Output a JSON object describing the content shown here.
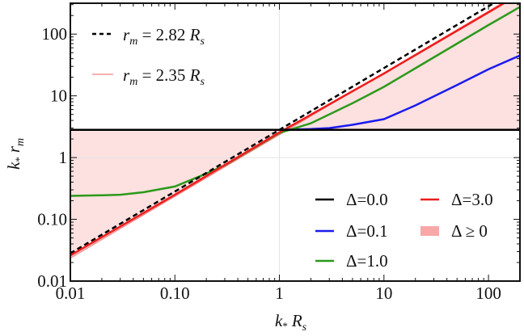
{
  "chart_data": {
    "type": "line",
    "x_scale": "log",
    "y_scale": "log",
    "xlim": [
      0.01,
      200
    ],
    "ylim": [
      0.01,
      316
    ],
    "grid": "faint lines at x=1 and y=1",
    "xlabel": {
      "var": "k",
      "sub": "*",
      "unit": "R",
      "unit_sub": "s"
    },
    "ylabel": {
      "var": "k",
      "sub": "*",
      "unit": "r",
      "unit_sub": "m"
    },
    "x_ticks": [
      {
        "value": 0.01,
        "label": "0.01"
      },
      {
        "value": 0.1,
        "label": "0.10"
      },
      {
        "value": 1,
        "label": "1"
      },
      {
        "value": 10,
        "label": "10"
      },
      {
        "value": 100,
        "label": "100"
      }
    ],
    "y_ticks": [
      {
        "value": 0.01,
        "label": "0.01"
      },
      {
        "value": 0.1,
        "label": "0.10"
      },
      {
        "value": 1,
        "label": "1"
      },
      {
        "value": 10,
        "label": "10"
      },
      {
        "value": 100,
        "label": "100"
      }
    ],
    "fill": {
      "name": "Δ ≥ 0",
      "color": "#fde0e0",
      "legend_color": "#f9a8a8",
      "between": [
        "Δ=0.0",
        "r_m = 2.35 R_s"
      ]
    },
    "series": [
      {
        "name": "Δ=0.0",
        "color": "#000000",
        "points": [
          [
            0.01,
            2.82
          ],
          [
            200,
            2.82
          ]
        ]
      },
      {
        "name": "Δ=0.1",
        "color": "#1a1aee",
        "points": [
          [
            0.01,
            2.82
          ],
          [
            1,
            2.82
          ],
          [
            2,
            2.9
          ],
          [
            3,
            3.0
          ],
          [
            5,
            3.4
          ],
          [
            10,
            4.2
          ],
          [
            20,
            7
          ],
          [
            50,
            15
          ],
          [
            100,
            27
          ],
          [
            200,
            45
          ]
        ]
      },
      {
        "name": "Δ=1.0",
        "color": "#2a9a1a",
        "points": [
          [
            0.01,
            0.24
          ],
          [
            0.02,
            0.245
          ],
          [
            0.03,
            0.25
          ],
          [
            0.05,
            0.275
          ],
          [
            0.1,
            0.34
          ],
          [
            0.2,
            0.55
          ],
          [
            0.3,
            0.75
          ],
          [
            0.5,
            1.25
          ],
          [
            1,
            2.5
          ],
          [
            2,
            3.6
          ],
          [
            5,
            7.6
          ],
          [
            10,
            14
          ],
          [
            20,
            28
          ],
          [
            50,
            70
          ],
          [
            100,
            140
          ],
          [
            200,
            275
          ]
        ]
      },
      {
        "name": "Δ=3.0",
        "color": "#ee1c1c",
        "points": [
          [
            0.01,
            0.026
          ],
          [
            0.1,
            0.25
          ],
          [
            1,
            2.55
          ],
          [
            10,
            23
          ],
          [
            100,
            225
          ],
          [
            200,
            450
          ]
        ]
      },
      {
        "name": "r_m = 2.82 R_s",
        "color": "#000000",
        "dashed": true,
        "points": [
          [
            0.01,
            0.0282
          ],
          [
            200,
            564
          ]
        ]
      },
      {
        "name": "r_m = 2.35 R_s",
        "color": "#f08080",
        "thin": true,
        "points": [
          [
            0.01,
            0.0235
          ],
          [
            200,
            470
          ]
        ]
      }
    ],
    "legend_top_left": [
      {
        "var": "r",
        "sub": "m",
        "eq": " = 2.82 ",
        "unit": "R",
        "unit_sub": "s",
        "style": "dashed",
        "color": "#000000"
      },
      {
        "var": "r",
        "sub": "m",
        "eq": " = 2.35 ",
        "unit": "R",
        "unit_sub": "s",
        "style": "thin",
        "color": "#f08080"
      }
    ],
    "legend_bottom_right": [
      {
        "label": "Δ=0.0",
        "color": "#000000"
      },
      {
        "label": "Δ=3.0",
        "color": "#ee1c1c"
      },
      {
        "label": "Δ=0.1",
        "color": "#1a1aee"
      },
      {
        "label": "Δ ≥ 0",
        "color": "#f9a8a8",
        "swatch": true
      },
      {
        "label": "Δ=1.0",
        "color": "#2a9a1a"
      }
    ]
  }
}
